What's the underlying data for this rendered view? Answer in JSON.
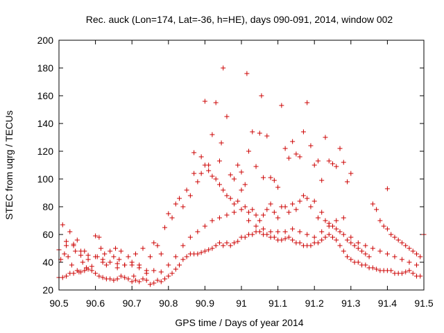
{
  "chart_data": {
    "type": "scatter",
    "title": "Rec. auck (Lon=174, Lat=-36, h=HE), days 090-091, 2014, window 002",
    "xlabel": "GPS time / Days of year 2014",
    "ylabel": "STEC from uqrg / TECUs",
    "xlim": [
      90.5,
      91.5
    ],
    "ylim": [
      20,
      200
    ],
    "xticks": [
      90.5,
      90.6,
      90.7,
      90.8,
      90.9,
      91,
      91.1,
      91.2,
      91.3,
      91.4,
      91.5
    ],
    "xtick_labels": [
      "90.5",
      "90.6",
      "90.7",
      "90.8",
      "90.9",
      "91",
      "91.1",
      "91.2",
      "91.3",
      "91.4",
      "91.5"
    ],
    "yticks": [
      20,
      40,
      60,
      80,
      100,
      120,
      140,
      160,
      180,
      200
    ],
    "ytick_labels": [
      "20",
      "40",
      "60",
      "80",
      "100",
      "120",
      "140",
      "160",
      "180",
      "200"
    ],
    "marker": "+",
    "color": "#cc0000",
    "grid": false,
    "legend": "none",
    "series": [
      {
        "name": "STEC",
        "x": [
          90.5,
          90.505,
          90.51,
          90.515,
          90.52,
          90.525,
          90.53,
          90.535,
          90.54,
          90.545,
          90.55,
          90.555,
          90.56,
          90.565,
          90.57,
          90.575,
          90.58,
          90.59,
          90.6,
          90.605,
          90.61,
          90.615,
          90.62,
          90.625,
          90.63,
          90.64,
          90.65,
          90.655,
          90.66,
          90.665,
          90.67,
          90.68,
          90.69,
          90.7,
          90.705,
          90.71,
          90.72,
          90.73,
          90.74,
          90.75,
          90.76,
          90.77,
          90.78,
          90.79,
          90.8,
          90.81,
          90.82,
          90.83,
          90.84,
          90.85,
          90.86,
          90.87,
          90.88,
          90.89,
          90.9,
          90.91,
          90.92,
          90.93,
          90.94,
          90.95,
          90.96,
          90.97,
          90.98,
          90.99,
          91.0,
          91.01,
          91.02,
          91.03,
          91.04,
          91.05,
          91.06,
          91.07,
          91.08,
          91.09,
          91.1,
          91.11,
          91.12,
          91.13,
          91.14,
          91.15,
          91.16,
          91.17,
          91.18,
          91.19,
          91.2,
          91.21,
          91.22,
          91.23,
          91.24,
          91.25,
          91.26,
          91.27,
          91.28,
          91.29,
          91.3,
          91.31,
          91.32,
          91.33,
          91.34,
          91.35,
          91.36,
          91.37,
          91.38,
          91.39,
          91.4,
          91.41,
          91.42,
          91.43,
          91.44,
          91.45,
          91.46,
          91.47,
          91.48,
          91.49,
          91.5,
          90.5,
          90.51,
          90.52,
          90.53,
          90.54,
          90.55,
          90.56,
          90.57,
          90.58,
          90.59,
          90.6,
          90.61,
          90.62,
          90.63,
          90.64,
          90.65,
          90.66,
          90.67,
          90.68,
          90.69,
          90.7,
          90.71,
          90.72,
          90.73,
          90.74,
          90.75,
          90.76,
          90.77,
          90.78,
          90.79,
          90.8,
          90.81,
          90.82,
          90.83,
          90.84,
          90.85,
          90.86,
          90.87,
          90.88,
          90.89,
          90.9,
          90.91,
          90.92,
          90.93,
          90.94,
          90.95,
          90.96,
          90.97,
          90.98,
          90.99,
          91.0,
          91.01,
          91.02,
          91.03,
          91.04,
          91.05,
          91.06,
          91.07,
          91.08,
          91.09,
          91.1,
          91.11,
          91.12,
          91.13,
          91.14,
          91.15,
          91.16,
          91.17,
          91.18,
          91.19,
          91.2,
          91.21,
          91.22,
          91.23,
          91.24,
          91.25,
          91.26,
          91.27,
          91.28,
          91.29,
          91.3,
          91.31,
          91.32,
          91.33,
          91.34,
          91.35,
          91.36,
          91.37,
          91.38,
          91.39,
          91.4,
          91.41,
          91.42,
          91.43,
          91.44,
          91.45,
          91.46,
          91.47,
          91.48,
          91.49,
          90.52,
          90.54,
          90.56,
          90.58,
          90.6,
          90.62,
          90.64,
          90.66,
          90.68,
          90.7,
          90.72,
          90.74,
          90.76,
          90.78,
          90.8,
          90.82,
          90.84,
          90.86,
          90.88,
          90.9,
          90.92,
          90.94,
          90.96,
          90.98,
          91.0,
          91.02,
          91.04,
          91.06,
          91.08,
          91.1,
          91.12,
          91.14,
          91.16,
          91.18,
          91.2,
          91.22,
          91.24,
          91.26,
          91.28,
          91.3,
          91.32,
          91.34,
          91.36,
          91.38,
          91.4,
          91.42,
          91.44,
          91.46,
          91.48,
          90.87,
          90.89,
          90.9,
          90.91,
          90.92,
          90.93,
          90.94,
          90.945,
          90.95,
          90.96,
          90.97,
          90.98,
          90.99,
          91.0,
          91.01,
          91.015,
          91.02,
          91.03,
          91.04,
          91.05,
          91.055,
          91.06,
          91.07,
          91.08,
          91.09,
          91.1,
          91.11,
          91.12,
          91.13,
          91.14,
          91.15,
          91.16,
          91.17,
          91.18,
          91.19,
          91.2,
          91.21,
          91.22,
          91.23,
          91.24,
          91.25,
          91.26,
          91.27,
          91.28,
          91.29,
          91.3,
          91.4
        ],
        "y": [
          49,
          42,
          67,
          46,
          52,
          44,
          62,
          38,
          53,
          48,
          56,
          33,
          45,
          40,
          48,
          36,
          42,
          37,
          59,
          44,
          58,
          50,
          40,
          46,
          38,
          48,
          44,
          50,
          36,
          42,
          48,
          38,
          44,
          40,
          30,
          46,
          38,
          50,
          32,
          44,
          54,
          52,
          46,
          65,
          75,
          72,
          82,
          86,
          80,
          92,
          88,
          104,
          98,
          116,
          110,
          106,
          102,
          100,
          96,
          92,
          88,
          86,
          82,
          84,
          92,
          80,
          76,
          78,
          74,
          70,
          74,
          78,
          82,
          76,
          72,
          80,
          80,
          76,
          82,
          78,
          84,
          88,
          86,
          80,
          84,
          72,
          76,
          70,
          68,
          66,
          64,
          62,
          60,
          56,
          54,
          52,
          50,
          48,
          46,
          44,
          82,
          78,
          70,
          66,
          64,
          60,
          58,
          56,
          54,
          52,
          50,
          48,
          46,
          44,
          60,
          29,
          29,
          30,
          32,
          32,
          34,
          33,
          34,
          35,
          34,
          32,
          30,
          29,
          28,
          28,
          27,
          28,
          30,
          29,
          28,
          26,
          27,
          26,
          28,
          27,
          24,
          25,
          27,
          26,
          28,
          30,
          32,
          35,
          38,
          42,
          44,
          46,
          46,
          46,
          47,
          48,
          49,
          50,
          52,
          54,
          52,
          54,
          52,
          54,
          55,
          58,
          58,
          60,
          60,
          62,
          62,
          60,
          60,
          58,
          58,
          56,
          56,
          57,
          58,
          56,
          54,
          54,
          52,
          52,
          52,
          54,
          54,
          56,
          58,
          60,
          58,
          56,
          52,
          48,
          44,
          42,
          40,
          40,
          38,
          38,
          36,
          36,
          35,
          34,
          34,
          34,
          34,
          32,
          32,
          32,
          33,
          34,
          32,
          30,
          30,
          55,
          52,
          48,
          45,
          44,
          42,
          40,
          39,
          38,
          38,
          36,
          34,
          34,
          33,
          38,
          44,
          52,
          58,
          62,
          66,
          70,
          72,
          74,
          76,
          78,
          70,
          66,
          64,
          62,
          62,
          62,
          64,
          62,
          60,
          58,
          62,
          66,
          70,
          72,
          58,
          54,
          52,
          50,
          48,
          46,
          44,
          42,
          40,
          38,
          119,
          104,
          156,
          110,
          132,
          155,
          113,
          126,
          180,
          145,
          103,
          100,
          110,
          105,
          96,
          176,
          120,
          134,
          109,
          133,
          160,
          101,
          131,
          101,
          99,
          94,
          153,
          122,
          115,
          127,
          118,
          116,
          134,
          155,
          124,
          110,
          113,
          99,
          130,
          113,
          111,
          109,
          122,
          112,
          98,
          104,
          93
        ]
      }
    ]
  }
}
